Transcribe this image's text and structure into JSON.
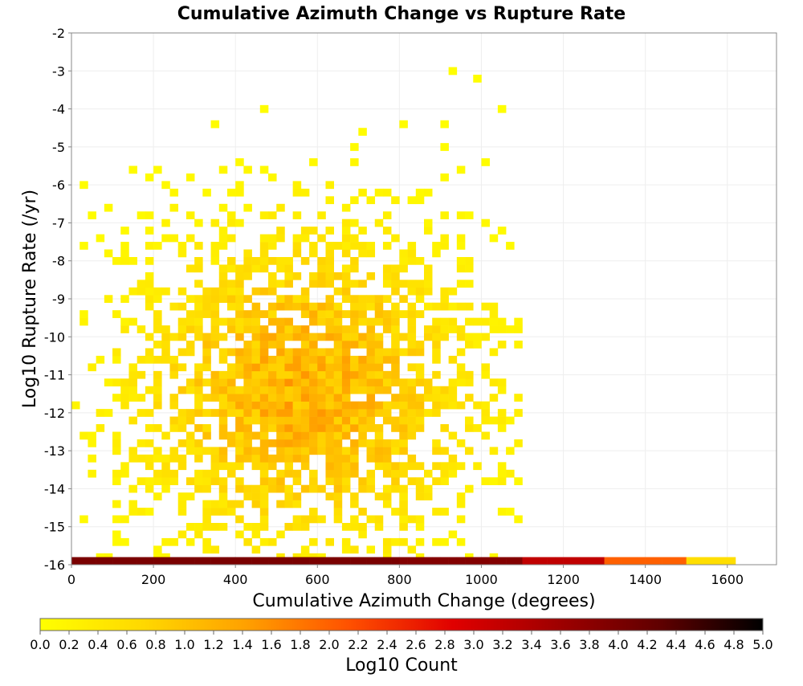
{
  "chart_data": {
    "type": "heatmap",
    "title": "Cumulative Azimuth Change vs Rupture Rate",
    "xlabel": "Cumulative Azimuth Change (degrees)",
    "ylabel": "Log10 Rupture Rate (/yr)",
    "xlim": [
      0,
      1720
    ],
    "ylim": [
      -16,
      -2
    ],
    "x_ticks": [
      "0",
      "200",
      "400",
      "600",
      "800",
      "1000",
      "1200",
      "1400",
      "1600"
    ],
    "y_ticks": [
      "-2",
      "-3",
      "-4",
      "-5",
      "-6",
      "-7",
      "-8",
      "-9",
      "-10",
      "-11",
      "-12",
      "-13",
      "-14",
      "-15",
      "-16"
    ],
    "grid": true,
    "bin_width_deg": 20,
    "bin_height_log": 0.2,
    "bins": {
      "x_start": 0,
      "y_top": -2,
      "description": "Density of log10 counts per 20-degree by 0.2-log bin; bottom row at -16 holds the highest counts.",
      "cluster_center": {
        "x": 560,
        "y": -11.5
      },
      "x_extent": [
        0,
        1100
      ],
      "y_extent": [
        -15.9,
        -2.4
      ],
      "peak_log_count_interior": 1.4,
      "bottom_row": [
        {
          "x_range": [
            0,
            800
          ],
          "log_count": 4.0
        },
        {
          "x_range": [
            800,
            1100
          ],
          "log_count": 3.9
        },
        {
          "x_range": [
            1100,
            1300
          ],
          "log_count": 3.2
        },
        {
          "x_range": [
            1300,
            1500
          ],
          "log_count": 2.0
        },
        {
          "x_range": [
            1500,
            1620
          ],
          "log_count": 0.6
        }
      ]
    },
    "colorbar": {
      "label": "Log10 Count",
      "range": [
        0.0,
        5.0
      ],
      "ticks": [
        "0.0",
        "0.2",
        "0.4",
        "0.6",
        "0.8",
        "1.0",
        "1.2",
        "1.4",
        "1.6",
        "1.8",
        "2.0",
        "2.2",
        "2.4",
        "2.6",
        "2.8",
        "3.0",
        "3.2",
        "3.4",
        "3.6",
        "3.8",
        "4.0",
        "4.2",
        "4.4",
        "4.6",
        "4.8",
        "5.0"
      ],
      "colors": [
        "#ffff00",
        "#ffd800",
        "#ffa000",
        "#ff5000",
        "#e00000",
        "#a00000",
        "#600000",
        "#000000"
      ]
    }
  }
}
